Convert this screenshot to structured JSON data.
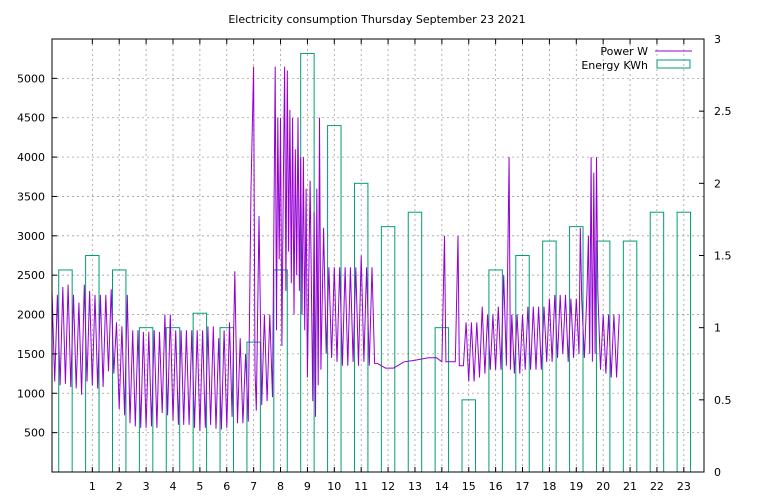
{
  "chart_data": {
    "type": "line",
    "title": "Electricity consumption Thursday September 23 2021",
    "xlabel": "",
    "ylabel": "",
    "y2label": "",
    "xlim": [
      -0.5,
      23.75
    ],
    "ylim": [
      0,
      5500
    ],
    "y2lim": [
      0,
      3
    ],
    "x_ticks": [
      1,
      2,
      3,
      4,
      5,
      6,
      7,
      8,
      9,
      10,
      11,
      12,
      13,
      14,
      15,
      16,
      17,
      18,
      19,
      20,
      21,
      22,
      23
    ],
    "y_ticks": [
      500,
      1000,
      1500,
      2000,
      2500,
      3000,
      3500,
      4000,
      4500,
      5000
    ],
    "y2_ticks": [
      0,
      0.5,
      1,
      1.5,
      2,
      2.5,
      3
    ],
    "y2_tick_labels": [
      "0",
      "0.5",
      "1",
      "1.5",
      "2",
      "2.5",
      "3"
    ],
    "grid": true,
    "legend_position": "top-right",
    "colors": {
      "power": "#9400d3",
      "energy": "#009e73"
    },
    "series": [
      {
        "name": "Power W",
        "axis": "left",
        "style": "line",
        "points": [
          [
            -0.5,
            2300
          ],
          [
            -0.4,
            1150
          ],
          [
            -0.3,
            2250
          ],
          [
            -0.2,
            1100
          ],
          [
            -0.1,
            2350
          ],
          [
            0.0,
            1120
          ],
          [
            0.1,
            2380
          ],
          [
            0.2,
            1080
          ],
          [
            0.3,
            2250
          ],
          [
            0.4,
            1060
          ],
          [
            0.5,
            2150
          ],
          [
            0.6,
            980
          ],
          [
            0.7,
            2380
          ],
          [
            0.8,
            1150
          ],
          [
            0.9,
            2300
          ],
          [
            1.0,
            1100
          ],
          [
            1.1,
            2250
          ],
          [
            1.2,
            1060
          ],
          [
            1.3,
            2250
          ],
          [
            1.4,
            1080
          ],
          [
            1.5,
            2250
          ],
          [
            1.6,
            1280
          ],
          [
            1.7,
            2320
          ],
          [
            1.8,
            1250
          ],
          [
            1.9,
            1900
          ],
          [
            2.0,
            800
          ],
          [
            2.1,
            1850
          ],
          [
            2.2,
            720
          ],
          [
            2.3,
            2250
          ],
          [
            2.4,
            620
          ],
          [
            2.5,
            1800
          ],
          [
            2.6,
            580
          ],
          [
            2.7,
            1800
          ],
          [
            2.8,
            560
          ],
          [
            2.9,
            1780
          ],
          [
            3.0,
            560
          ],
          [
            3.1,
            1780
          ],
          [
            3.2,
            580
          ],
          [
            3.3,
            1800
          ],
          [
            3.4,
            560
          ],
          [
            3.5,
            1780
          ],
          [
            3.6,
            750
          ],
          [
            3.7,
            2000
          ],
          [
            3.8,
            720
          ],
          [
            3.9,
            2000
          ],
          [
            4.0,
            650
          ],
          [
            4.1,
            1800
          ],
          [
            4.2,
            600
          ],
          [
            4.3,
            1800
          ],
          [
            4.4,
            600
          ],
          [
            4.5,
            1800
          ],
          [
            4.6,
            600
          ],
          [
            4.7,
            1800
          ],
          [
            4.8,
            560
          ],
          [
            4.9,
            1800
          ],
          [
            5.0,
            520
          ],
          [
            5.1,
            1800
          ],
          [
            5.2,
            560
          ],
          [
            5.3,
            1850
          ],
          [
            5.4,
            600
          ],
          [
            5.5,
            1850
          ],
          [
            5.6,
            550
          ],
          [
            5.7,
            1700
          ],
          [
            5.8,
            540
          ],
          [
            5.9,
            1800
          ],
          [
            6.0,
            560
          ],
          [
            6.1,
            1900
          ],
          [
            6.2,
            700
          ],
          [
            6.3,
            2550
          ],
          [
            6.4,
            620
          ],
          [
            6.5,
            1700
          ],
          [
            6.6,
            620
          ],
          [
            6.7,
            1500
          ],
          [
            6.8,
            640
          ],
          [
            6.9,
            3600
          ],
          [
            7.0,
            5150
          ],
          [
            7.05,
            1300
          ],
          [
            7.1,
            780
          ],
          [
            7.2,
            3250
          ],
          [
            7.3,
            850
          ],
          [
            7.4,
            2000
          ],
          [
            7.5,
            900
          ],
          [
            7.6,
            2000
          ],
          [
            7.7,
            950
          ],
          [
            7.75,
            3000
          ],
          [
            7.8,
            5150
          ],
          [
            7.85,
            1800
          ],
          [
            7.9,
            4500
          ],
          [
            7.95,
            2700
          ],
          [
            8.0,
            4500
          ],
          [
            8.05,
            1600
          ],
          [
            8.1,
            3500
          ],
          [
            8.15,
            5150
          ],
          [
            8.2,
            2300
          ],
          [
            8.25,
            5100
          ],
          [
            8.3,
            2800
          ],
          [
            8.35,
            4600
          ],
          [
            8.4,
            2400
          ],
          [
            8.45,
            4500
          ],
          [
            8.5,
            2000
          ],
          [
            8.55,
            4100
          ],
          [
            8.6,
            2500
          ],
          [
            8.65,
            4500
          ],
          [
            8.7,
            2300
          ],
          [
            8.75,
            4000
          ],
          [
            8.8,
            2000
          ],
          [
            8.85,
            4000
          ],
          [
            8.9,
            1800
          ],
          [
            8.95,
            3600
          ],
          [
            9.0,
            1200
          ],
          [
            9.1,
            3700
          ],
          [
            9.2,
            900
          ],
          [
            9.25,
            3300
          ],
          [
            9.3,
            700
          ],
          [
            9.35,
            3600
          ],
          [
            9.4,
            1100
          ],
          [
            9.45,
            4500
          ],
          [
            9.5,
            1300
          ],
          [
            9.6,
            3100
          ],
          [
            9.7,
            1500
          ],
          [
            9.8,
            2600
          ],
          [
            9.9,
            1450
          ],
          [
            10.0,
            2600
          ],
          [
            10.1,
            1400
          ],
          [
            10.2,
            2600
          ],
          [
            10.3,
            1350
          ],
          [
            10.4,
            2600
          ],
          [
            10.5,
            1350
          ],
          [
            10.6,
            2600
          ],
          [
            10.7,
            1400
          ],
          [
            10.8,
            2600
          ],
          [
            10.9,
            1350
          ],
          [
            11.0,
            2750
          ],
          [
            11.1,
            1400
          ],
          [
            11.2,
            2600
          ],
          [
            11.3,
            1350
          ],
          [
            11.4,
            2600
          ],
          [
            11.5,
            1380
          ],
          [
            11.6,
            1380
          ],
          [
            11.9,
            1320
          ],
          [
            12.2,
            1320
          ],
          [
            12.6,
            1400
          ],
          [
            13.0,
            1420
          ],
          [
            13.5,
            1450
          ],
          [
            13.8,
            1450
          ],
          [
            14.0,
            1400
          ],
          [
            14.1,
            3000
          ],
          [
            14.15,
            1400
          ],
          [
            14.5,
            1400
          ],
          [
            14.6,
            3000
          ],
          [
            14.65,
            1350
          ],
          [
            14.8,
            1350
          ],
          [
            14.9,
            1900
          ],
          [
            15.0,
            1150
          ],
          [
            15.1,
            1900
          ],
          [
            15.2,
            1150
          ],
          [
            15.3,
            1900
          ],
          [
            15.4,
            1200
          ],
          [
            15.5,
            2100
          ],
          [
            15.6,
            1250
          ],
          [
            15.7,
            2000
          ],
          [
            15.8,
            1300
          ],
          [
            15.9,
            2000
          ],
          [
            16.0,
            1300
          ],
          [
            16.1,
            2100
          ],
          [
            16.2,
            1300
          ],
          [
            16.3,
            2500
          ],
          [
            16.4,
            1350
          ],
          [
            16.5,
            4000
          ],
          [
            16.55,
            1300
          ],
          [
            16.6,
            2000
          ],
          [
            16.7,
            1250
          ],
          [
            16.8,
            2000
          ],
          [
            16.9,
            1250
          ],
          [
            17.0,
            2000
          ],
          [
            17.1,
            1300
          ],
          [
            17.2,
            2100
          ],
          [
            17.3,
            1300
          ],
          [
            17.4,
            2100
          ],
          [
            17.5,
            1300
          ],
          [
            17.6,
            2100
          ],
          [
            17.7,
            1300
          ],
          [
            17.8,
            2100
          ],
          [
            17.9,
            1400
          ],
          [
            18.0,
            2200
          ],
          [
            18.1,
            1400
          ],
          [
            18.2,
            2250
          ],
          [
            18.3,
            1450
          ],
          [
            18.4,
            2250
          ],
          [
            18.5,
            1500
          ],
          [
            18.6,
            2250
          ],
          [
            18.7,
            1400
          ],
          [
            18.8,
            2200
          ],
          [
            18.9,
            1450
          ],
          [
            19.0,
            2200
          ],
          [
            19.1,
            1500
          ],
          [
            19.15,
            3100
          ],
          [
            19.2,
            2200
          ],
          [
            19.3,
            1450
          ],
          [
            19.4,
            2300
          ],
          [
            19.45,
            3000
          ],
          [
            19.5,
            1500
          ],
          [
            19.55,
            4000
          ],
          [
            19.6,
            1400
          ],
          [
            19.65,
            3800
          ],
          [
            19.7,
            1500
          ],
          [
            19.75,
            4000
          ],
          [
            19.8,
            2300
          ],
          [
            19.9,
            1300
          ],
          [
            20.0,
            2000
          ],
          [
            20.1,
            1250
          ],
          [
            20.2,
            2000
          ],
          [
            20.3,
            1200
          ],
          [
            20.4,
            2000
          ],
          [
            20.5,
            1200
          ],
          [
            20.6,
            2000
          ]
        ]
      },
      {
        "name": "Energy KWh",
        "axis": "right",
        "style": "boxes",
        "hours": [
          0,
          1,
          2,
          3,
          4,
          5,
          6,
          7,
          8,
          9,
          10,
          11,
          12,
          13,
          14,
          15,
          16,
          17,
          18,
          19,
          20,
          21,
          22,
          23
        ],
        "values": [
          1.4,
          1.5,
          1.4,
          1.0,
          1.0,
          1.1,
          1.0,
          0.9,
          1.4,
          2.9,
          2.4,
          2.0,
          1.7,
          1.8,
          1.0,
          0.5,
          1.4,
          1.5,
          1.6,
          1.7,
          1.6,
          1.6,
          1.8,
          1.8
        ]
      }
    ]
  }
}
